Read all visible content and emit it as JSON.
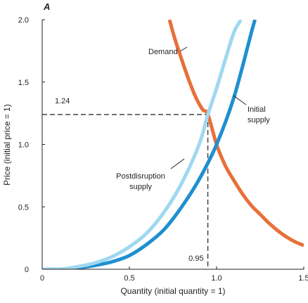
{
  "chart_data": {
    "type": "line",
    "panel_label": "A",
    "xlabel": "Quantity (initial quantity = 1)",
    "ylabel": "Price (initial price = 1)",
    "xlim": [
      0,
      1.5
    ],
    "ylim": [
      0,
      2.0
    ],
    "x_ticks": [
      0,
      0.5,
      1.0,
      1.5
    ],
    "x_tick_labels": [
      "0",
      "0.5",
      "1.0",
      "1.5"
    ],
    "y_ticks": [
      0,
      0.5,
      1.0,
      1.5,
      2.0
    ],
    "y_tick_labels": [
      "0",
      "0.5",
      "1.0",
      "1.5",
      "2.0"
    ],
    "grid": false,
    "series": [
      {
        "name": "Demand",
        "color": "#e8703a",
        "x": [
          0.73,
          0.76,
          0.8,
          0.84,
          0.88,
          0.92,
          0.95,
          1.0,
          1.05,
          1.1,
          1.15,
          1.2,
          1.25,
          1.3,
          1.35,
          1.4,
          1.45,
          1.5
        ],
        "y": [
          2.0,
          1.85,
          1.68,
          1.52,
          1.38,
          1.28,
          1.24,
          1.0,
          0.83,
          0.71,
          0.6,
          0.51,
          0.44,
          0.37,
          0.31,
          0.26,
          0.22,
          0.19
        ]
      },
      {
        "name": "Initial supply",
        "color": "#1f8fd0",
        "x": [
          0.0,
          0.1,
          0.2,
          0.3,
          0.4,
          0.5,
          0.6,
          0.7,
          0.8,
          0.9,
          1.0,
          1.1,
          1.2,
          1.22
        ],
        "y": [
          0.0,
          0.0,
          0.01,
          0.03,
          0.06,
          0.11,
          0.2,
          0.32,
          0.5,
          0.72,
          1.0,
          1.38,
          1.9,
          2.0
        ]
      },
      {
        "name": "Postdisruption supply",
        "color": "#9fd8f0",
        "x": [
          0.0,
          0.1,
          0.2,
          0.3,
          0.4,
          0.5,
          0.6,
          0.7,
          0.8,
          0.9,
          0.95,
          1.0,
          1.05,
          1.1,
          1.14
        ],
        "y": [
          0.0,
          0.0,
          0.02,
          0.05,
          0.1,
          0.18,
          0.29,
          0.46,
          0.69,
          1.0,
          1.24,
          1.45,
          1.68,
          1.9,
          2.0
        ]
      }
    ],
    "reference_lines": [
      {
        "axis": "y",
        "value": 1.24,
        "label": "1.24"
      },
      {
        "axis": "x",
        "value": 0.95,
        "label": "0.95"
      }
    ],
    "series_labels": [
      {
        "text_lines": [
          "Demand"
        ],
        "series": "Demand"
      },
      {
        "text_lines": [
          "Initial",
          "supply"
        ],
        "series": "Initial supply"
      },
      {
        "text_lines": [
          "Postdisruption",
          "supply"
        ],
        "series": "Postdisruption supply"
      }
    ]
  }
}
